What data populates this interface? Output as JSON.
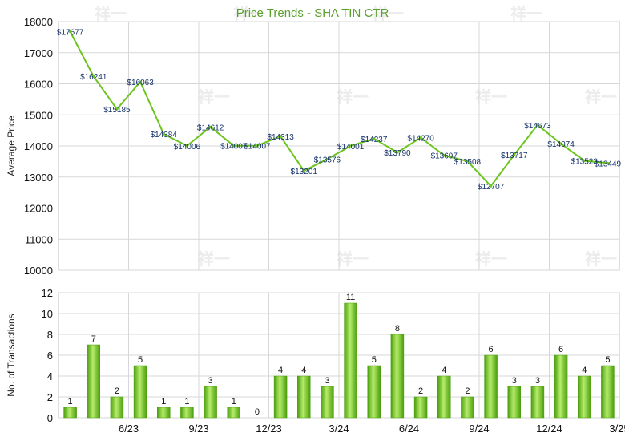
{
  "colors": {
    "line": "#6cc51c",
    "bar_light": "#b6ec6a",
    "bar_dark": "#4a9e0d",
    "title": "#5aa02c",
    "price_label": "#14316b"
  },
  "watermark_text": "祥一",
  "chart_data": [
    {
      "type": "line",
      "title": "Price Trends - SHA TIN CTR",
      "ylabel": "Average Price",
      "ylim": [
        10000,
        18000
      ],
      "yticks": [
        10000,
        11000,
        12000,
        13000,
        14000,
        15000,
        16000,
        17000,
        18000
      ],
      "grid": true,
      "series": [
        {
          "values": [
            17677,
            16241,
            15185,
            16063,
            14384,
            14006,
            14612,
            14007,
            14007,
            14313,
            13201,
            13576,
            14001,
            14237,
            13790,
            14270,
            13697,
            13508,
            12707,
            13717,
            14673,
            14074,
            13523,
            13449
          ],
          "labels": [
            "$17677",
            "$16241",
            "$15185",
            "$16063",
            "$14384",
            "$14006",
            "$14612",
            "$14007",
            "$14007",
            "$14313",
            "$13201",
            "$13576",
            "$14001",
            "$14237",
            "$13790",
            "$14270",
            "$13697",
            "$13508",
            "$12707",
            "$13717",
            "$14673",
            "$14074",
            "$13523",
            "$13449"
          ]
        }
      ]
    },
    {
      "type": "bar",
      "ylabel": "No. of Transactions",
      "ylim": [
        0,
        12
      ],
      "yticks": [
        0,
        2,
        4,
        6,
        8,
        10,
        12
      ],
      "xtick_labels": [
        "6/23",
        "9/23",
        "12/23",
        "3/24",
        "6/24",
        "9/24",
        "12/24",
        "3/25"
      ],
      "grid": true,
      "values": [
        1,
        7,
        2,
        5,
        1,
        1,
        3,
        1,
        0,
        4,
        4,
        3,
        11,
        5,
        8,
        2,
        4,
        2,
        6,
        3,
        3,
        6,
        4,
        5
      ]
    }
  ]
}
